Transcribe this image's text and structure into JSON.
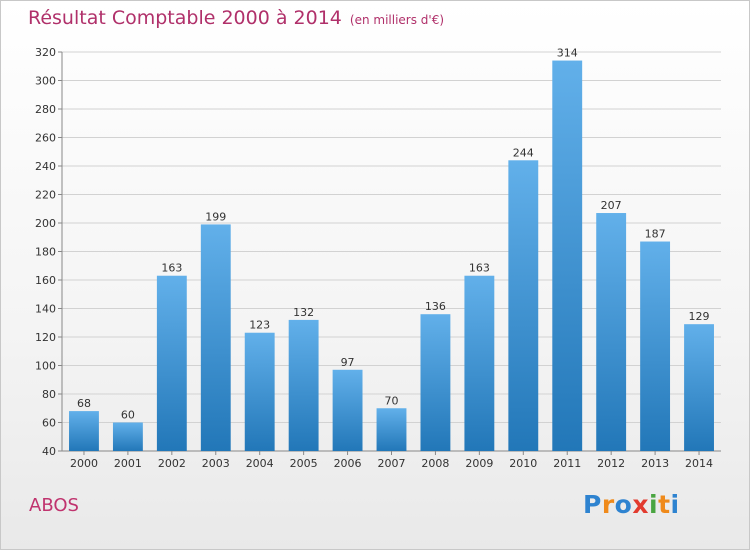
{
  "chart_data": {
    "type": "bar",
    "title": "Résultat Comptable 2000 à 2014",
    "subtitle": "(en milliers d'€)",
    "categories": [
      "2000",
      "2001",
      "2002",
      "2003",
      "2004",
      "2005",
      "2006",
      "2007",
      "2008",
      "2009",
      "2010",
      "2011",
      "2012",
      "2013",
      "2014"
    ],
    "values": [
      68,
      60,
      163,
      199,
      123,
      132,
      97,
      70,
      136,
      163,
      244,
      314,
      207,
      187,
      129
    ],
    "ylim": [
      40,
      320
    ],
    "yticks": [
      40,
      60,
      80,
      100,
      120,
      140,
      160,
      180,
      200,
      220,
      240,
      260,
      280,
      300,
      320
    ],
    "grid": true,
    "xlabel": "",
    "ylabel": "",
    "colors": {
      "bar_top": "#62b0ea",
      "bar_bottom": "#2277b8",
      "title": "#b0306a"
    }
  },
  "footer": {
    "commune": "ABOS",
    "logo_letters": [
      "P",
      "r",
      "o",
      "x",
      "i",
      "t",
      "i"
    ],
    "logo_colors": [
      "#2e83d0",
      "#ef8a1b",
      "#2e83d0",
      "#e23b2f",
      "#4aa541",
      "#ef8a1b",
      "#2e83d0"
    ]
  }
}
